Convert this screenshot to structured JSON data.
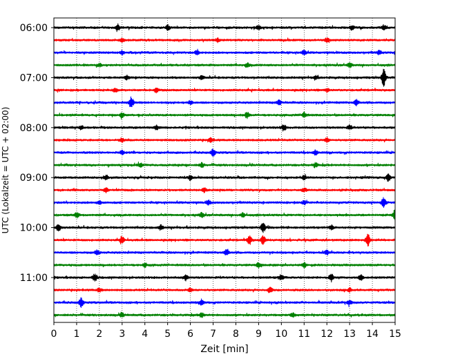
{
  "chart_data": {
    "type": "line",
    "xlabel": "Zeit  [min]",
    "ylabel": "UTC (Lokalzeit = UTC + 02:00)",
    "xlim": [
      0,
      15
    ],
    "x_ticks": [
      0,
      1,
      2,
      3,
      4,
      5,
      6,
      7,
      8,
      9,
      10,
      11,
      12,
      13,
      14,
      15
    ],
    "y_tick_labels": [
      "06:00",
      "07:00",
      "08:00",
      "09:00",
      "10:00",
      "11:00"
    ],
    "y_tick_rows": [
      0,
      4,
      8,
      12,
      16,
      20
    ],
    "grid": "vertical dotted",
    "trace_interval_minutes": 15,
    "trace_colors": [
      "#000000",
      "#ff0000",
      "#0000ff",
      "#008000"
    ],
    "traces": [
      {
        "start": "06:00",
        "events": [
          [
            2.8,
            0.5
          ],
          [
            5.0,
            0.4
          ],
          [
            9.0,
            0.35
          ],
          [
            13.1,
            0.35
          ],
          [
            14.5,
            0.4
          ]
        ]
      },
      {
        "start": "06:15",
        "events": [
          [
            3.0,
            0.3
          ],
          [
            7.2,
            0.25
          ],
          [
            12.0,
            0.3
          ]
        ]
      },
      {
        "start": "06:30",
        "events": [
          [
            3.0,
            0.3
          ],
          [
            6.3,
            0.35
          ],
          [
            11.0,
            0.4
          ],
          [
            14.3,
            0.3
          ]
        ]
      },
      {
        "start": "06:45",
        "events": [
          [
            2.0,
            0.25
          ],
          [
            8.5,
            0.3
          ],
          [
            13.0,
            0.35
          ]
        ]
      },
      {
        "start": "07:00",
        "events": [
          [
            3.2,
            0.3
          ],
          [
            6.5,
            0.3
          ],
          [
            11.5,
            0.3
          ],
          [
            14.5,
            1.4
          ]
        ]
      },
      {
        "start": "07:15",
        "events": [
          [
            2.7,
            0.3
          ],
          [
            4.5,
            0.35
          ],
          [
            12.0,
            0.3
          ]
        ]
      },
      {
        "start": "07:30",
        "events": [
          [
            3.4,
            0.9
          ],
          [
            6.0,
            0.3
          ],
          [
            9.9,
            0.45
          ],
          [
            13.3,
            0.45
          ]
        ]
      },
      {
        "start": "07:45",
        "events": [
          [
            3.0,
            0.4
          ],
          [
            8.5,
            0.5
          ],
          [
            11.0,
            0.4
          ]
        ]
      },
      {
        "start": "08:00",
        "events": [
          [
            1.2,
            0.3
          ],
          [
            4.5,
            0.35
          ],
          [
            10.1,
            0.5
          ],
          [
            13.0,
            0.3
          ]
        ]
      },
      {
        "start": "08:15",
        "events": [
          [
            3.0,
            0.3
          ],
          [
            6.9,
            0.35
          ],
          [
            12.0,
            0.35
          ]
        ]
      },
      {
        "start": "08:30",
        "events": [
          [
            3.0,
            0.3
          ],
          [
            7.0,
            0.55
          ],
          [
            11.5,
            0.35
          ]
        ]
      },
      {
        "start": "08:45",
        "events": [
          [
            3.8,
            0.3
          ],
          [
            6.5,
            0.35
          ],
          [
            11.5,
            0.35
          ]
        ]
      },
      {
        "start": "09:00",
        "events": [
          [
            2.3,
            0.35
          ],
          [
            6.0,
            0.35
          ],
          [
            11.0,
            0.3
          ],
          [
            14.7,
            0.55
          ]
        ]
      },
      {
        "start": "09:15",
        "events": [
          [
            2.3,
            0.35
          ],
          [
            6.6,
            0.35
          ],
          [
            11.0,
            0.3
          ]
        ]
      },
      {
        "start": "09:30",
        "events": [
          [
            2.0,
            0.3
          ],
          [
            6.8,
            0.35
          ],
          [
            11.0,
            0.3
          ],
          [
            14.5,
            0.75
          ]
        ]
      },
      {
        "start": "09:45",
        "events": [
          [
            1.0,
            0.4
          ],
          [
            6.5,
            0.35
          ],
          [
            8.3,
            0.35
          ],
          [
            15.0,
            1.0
          ]
        ]
      },
      {
        "start": "10:00",
        "events": [
          [
            0.2,
            0.7
          ],
          [
            4.7,
            0.35
          ],
          [
            9.2,
            0.75
          ],
          [
            12.2,
            0.35
          ]
        ]
      },
      {
        "start": "10:15",
        "events": [
          [
            3.0,
            0.6
          ],
          [
            8.6,
            0.75
          ],
          [
            9.2,
            0.75
          ],
          [
            13.8,
            1.2
          ]
        ]
      },
      {
        "start": "10:30",
        "events": [
          [
            1.9,
            0.4
          ],
          [
            7.6,
            0.5
          ],
          [
            12.0,
            0.35
          ]
        ]
      },
      {
        "start": "10:45",
        "events": [
          [
            4.0,
            0.3
          ],
          [
            9.0,
            0.4
          ],
          [
            11.0,
            0.35
          ]
        ]
      },
      {
        "start": "11:00",
        "events": [
          [
            1.8,
            0.6
          ],
          [
            5.8,
            0.45
          ],
          [
            10.0,
            0.4
          ],
          [
            12.2,
            0.55
          ],
          [
            13.5,
            0.45
          ]
        ]
      },
      {
        "start": "11:15",
        "events": [
          [
            2.0,
            0.3
          ],
          [
            6.0,
            0.3
          ],
          [
            9.5,
            0.4
          ],
          [
            13.0,
            0.3
          ]
        ]
      },
      {
        "start": "11:30",
        "events": [
          [
            1.2,
            0.7
          ],
          [
            6.5,
            0.45
          ],
          [
            13.0,
            0.35
          ]
        ]
      },
      {
        "start": "11:45",
        "events": [
          [
            3.0,
            0.3
          ],
          [
            6.5,
            0.35
          ],
          [
            10.5,
            0.3
          ]
        ]
      }
    ]
  }
}
